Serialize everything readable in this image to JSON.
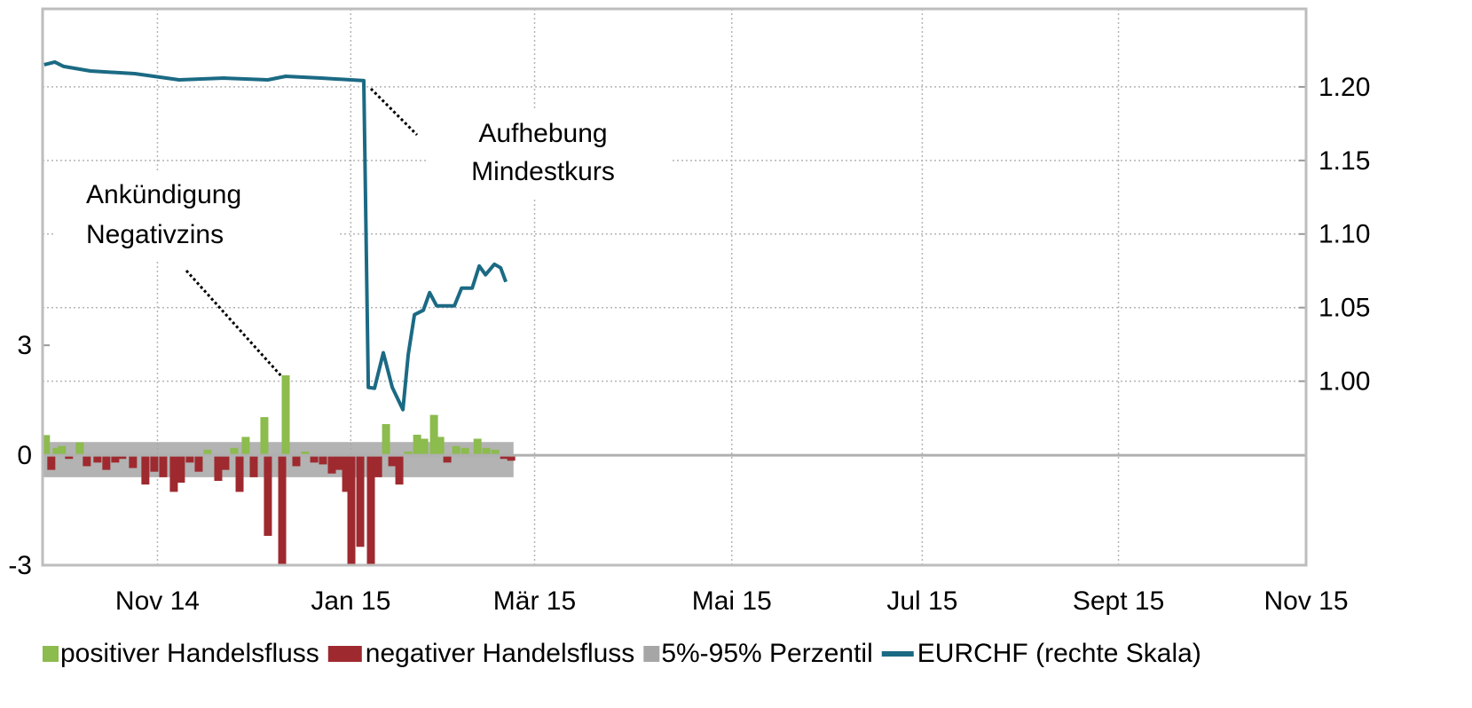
{
  "chart_data": {
    "type": "combo",
    "xlim": [
      0,
      13.2
    ],
    "xticks": [
      {
        "value": 1.2,
        "label": "Nov 14"
      },
      {
        "value": 3.22,
        "label": "Jan 15"
      },
      {
        "value": 5.14,
        "label": "Mär 15"
      },
      {
        "value": 7.2,
        "label": "Mai 15"
      },
      {
        "value": 9.19,
        "label": "Jul 15"
      },
      {
        "value": 11.24,
        "label": "Sept 15"
      },
      {
        "value": 13.2,
        "label": "Nov 15"
      }
    ],
    "ylim": [
      -3,
      12.18
    ],
    "yticks": [
      -3,
      0,
      3
    ],
    "y2lim": [
      0.875,
      1.253
    ],
    "y2ticks": [
      {
        "value": 1.0,
        "label": "1.00"
      },
      {
        "value": 1.05,
        "label": "1.05"
      },
      {
        "value": 1.1,
        "label": "1.10"
      },
      {
        "value": 1.15,
        "label": "1.15"
      },
      {
        "value": 1.2,
        "label": "1.20"
      }
    ],
    "grid": true,
    "legend": "bottom",
    "series": [
      {
        "name": "positiver Handelsfluss",
        "type": "bar",
        "color": "#8cbb4e",
        "x": [
          0.035,
          0.147,
          0.202,
          0.388,
          1.724,
          2.002,
          2.122,
          2.317,
          2.54,
          2.744,
          3.588,
          3.82,
          3.913,
          3.987,
          4.089,
          4.154,
          4.321,
          4.414,
          4.544,
          4.636,
          4.729
        ],
        "values": [
          0.55,
          0.2,
          0.25,
          0.35,
          0.15,
          0.2,
          0.5,
          1.04,
          2.18,
          0.1,
          0.85,
          0.1,
          0.56,
          0.45,
          1.1,
          0.5,
          0.25,
          0.2,
          0.45,
          0.2,
          0.15
        ]
      },
      {
        "name": "negativer Handelsfluss",
        "type": "bar",
        "color": "#9e2a2f",
        "x": [
          0.091,
          0.276,
          0.462,
          0.573,
          0.666,
          0.759,
          0.833,
          0.944,
          1.074,
          1.167,
          1.26,
          1.371,
          1.445,
          1.538,
          1.631,
          1.835,
          1.909,
          2.058,
          2.206,
          2.354,
          2.503,
          2.651,
          2.837,
          2.929,
          3.022,
          3.096,
          3.171,
          3.226,
          3.319,
          3.43,
          3.505,
          3.653,
          3.727,
          4.228,
          4.822,
          4.896
        ],
        "values": [
          -0.4,
          -0.1,
          -0.3,
          -0.2,
          -0.4,
          -0.2,
          -0.1,
          -0.35,
          -0.8,
          -0.45,
          -0.6,
          -1.0,
          -0.75,
          -0.2,
          -0.45,
          -0.7,
          -0.4,
          -1.0,
          -0.6,
          -2.2,
          -3.0,
          -0.3,
          -0.2,
          -0.25,
          -0.5,
          -0.4,
          -1.0,
          -3.0,
          -2.5,
          -3.0,
          -0.6,
          -0.3,
          -0.8,
          -0.2,
          -0.1,
          -0.15
        ]
      },
      {
        "name": "5%-95% Perzentil",
        "type": "band",
        "color": "#a6a6a6",
        "x": [
          0.0,
          4.92
        ],
        "low": -0.6,
        "high": 0.36
      },
      {
        "name": "EURCHF (rechte Skala)",
        "type": "line",
        "color": "#1b6a84",
        "axis": "y2",
        "x": [
          0.017,
          0.128,
          0.221,
          0.499,
          0.963,
          1.427,
          1.891,
          2.354,
          2.54,
          2.911,
          3.356,
          3.403,
          3.468,
          3.56,
          3.653,
          3.764,
          3.82,
          3.885,
          3.978,
          4.043,
          4.117,
          4.302,
          4.377,
          4.488,
          4.562,
          4.627,
          4.72,
          4.785,
          4.84
        ],
        "values": [
          1.2151,
          1.2169,
          1.2139,
          1.2108,
          1.209,
          1.2048,
          1.206,
          1.2048,
          1.2072,
          1.206,
          1.2042,
          0.9958,
          0.9952,
          1.0193,
          0.9958,
          0.9807,
          1.0181,
          1.0452,
          1.0482,
          1.0602,
          1.0512,
          1.0512,
          1.0633,
          1.0633,
          1.0783,
          1.0723,
          1.0795,
          1.0771,
          1.0675
        ]
      }
    ],
    "annotations": [
      {
        "lines": [
          "Aufhebung",
          "Mindestkurs"
        ]
      },
      {
        "lines": [
          "Ankündigung",
          "Negativzins"
        ]
      }
    ]
  }
}
